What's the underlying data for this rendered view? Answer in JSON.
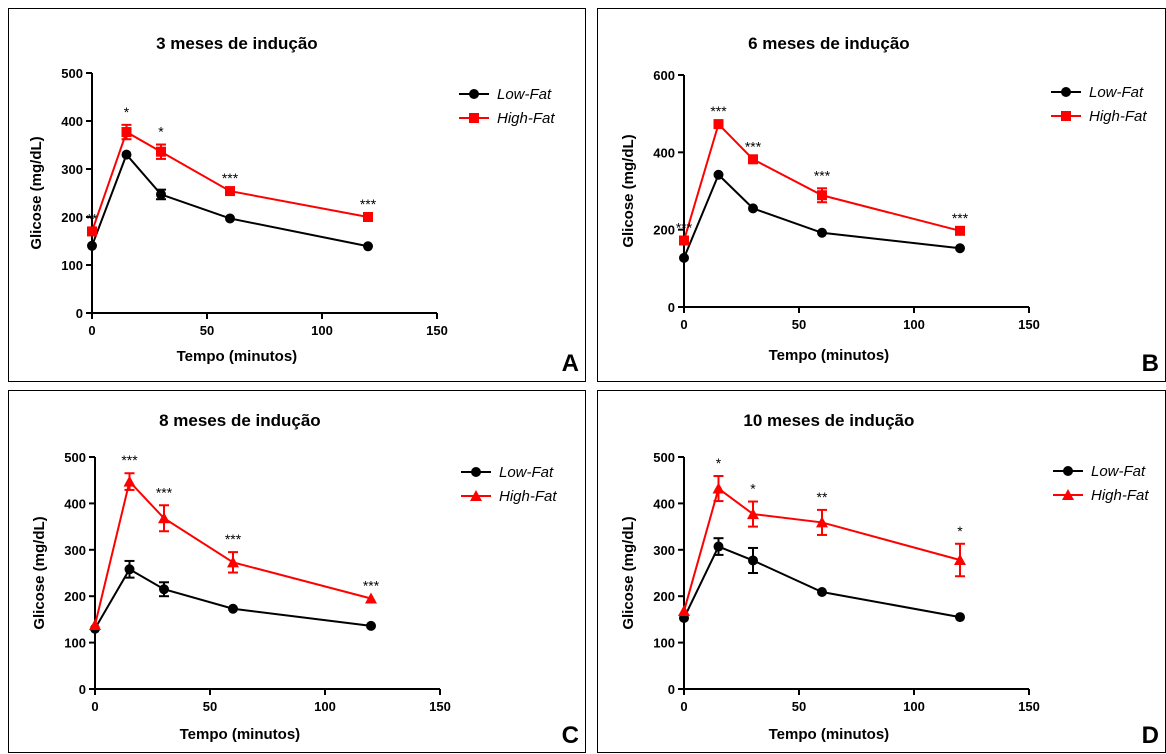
{
  "chart_data": [
    {
      "type": "line",
      "title": "3 meses de indução",
      "xlabel": "Tempo (minutos)",
      "ylabel": "Glicose (mg/dL)",
      "panel_label": "A",
      "xlim": [
        0,
        150
      ],
      "ylim": [
        0,
        500
      ],
      "xticks": [
        "0",
        "50",
        "100",
        "150"
      ],
      "yticks": [
        "0",
        "100",
        "200",
        "300",
        "400",
        "500"
      ],
      "legend_position": "right",
      "x": [
        0,
        15,
        30,
        60,
        120
      ],
      "series": [
        {
          "name": "Low-Fat",
          "color": "#000000",
          "marker": "circle",
          "values": [
            140,
            330,
            247,
            197,
            139
          ],
          "errors": [
            0,
            0,
            10,
            0,
            0
          ]
        },
        {
          "name": "High-Fat",
          "color": "#ff0000",
          "marker": "square",
          "values": [
            170,
            377,
            336,
            254,
            200
          ],
          "errors": [
            0,
            15,
            15,
            0,
            0
          ]
        }
      ],
      "annotations": [
        {
          "x": 0,
          "y": 170,
          "text": "**"
        },
        {
          "x": 15,
          "y": 392,
          "text": "*"
        },
        {
          "x": 30,
          "y": 351,
          "text": "*"
        },
        {
          "x": 60,
          "y": 254,
          "text": "***"
        },
        {
          "x": 120,
          "y": 200,
          "text": "***"
        }
      ]
    },
    {
      "type": "line",
      "title": "6 meses de indução",
      "xlabel": "Tempo (minutos)",
      "ylabel": "Glicose (mg/dL)",
      "panel_label": "B",
      "xlim": [
        0,
        150
      ],
      "ylim": [
        0,
        600
      ],
      "xticks": [
        "0",
        "50",
        "100",
        "150"
      ],
      "yticks": [
        "0",
        "200",
        "400",
        "600"
      ],
      "legend_position": "right",
      "x": [
        0,
        15,
        30,
        60,
        120
      ],
      "series": [
        {
          "name": "Low-Fat",
          "color": "#000000",
          "marker": "circle",
          "values": [
            127,
            342,
            255,
            192,
            152
          ],
          "errors": [
            0,
            0,
            0,
            0,
            0
          ]
        },
        {
          "name": "High-Fat",
          "color": "#ff0000",
          "marker": "square",
          "values": [
            172,
            473,
            382,
            289,
            197
          ],
          "errors": [
            0,
            0,
            0,
            18,
            0
          ]
        }
      ],
      "annotations": [
        {
          "x": 0,
          "y": 172,
          "text": "***"
        },
        {
          "x": 15,
          "y": 473,
          "text": "***"
        },
        {
          "x": 30,
          "y": 382,
          "text": "***"
        },
        {
          "x": 60,
          "y": 307,
          "text": "***"
        },
        {
          "x": 120,
          "y": 197,
          "text": "***"
        }
      ]
    },
    {
      "type": "line",
      "title": "8 meses de indução",
      "xlabel": "Tempo  (minutos)",
      "ylabel": "Glicose (mg/dL)",
      "panel_label": "C",
      "xlim": [
        0,
        150
      ],
      "ylim": [
        0,
        500
      ],
      "xticks": [
        "0",
        "50",
        "100",
        "150"
      ],
      "yticks": [
        "0",
        "100",
        "200",
        "300",
        "400",
        "500"
      ],
      "legend_position": "right",
      "x": [
        0,
        15,
        30,
        60,
        120
      ],
      "series": [
        {
          "name": "Low-Fat",
          "color": "#000000",
          "marker": "circle",
          "values": [
            130,
            258,
            215,
            173,
            136
          ],
          "errors": [
            0,
            18,
            15,
            0,
            0
          ]
        },
        {
          "name": "High-Fat",
          "color": "#ff0000",
          "marker": "triangle",
          "values": [
            138,
            447,
            368,
            273,
            195
          ],
          "errors": [
            0,
            18,
            28,
            22,
            0
          ]
        }
      ],
      "annotations": [
        {
          "x": 15,
          "y": 465,
          "text": "***"
        },
        {
          "x": 30,
          "y": 396,
          "text": "***"
        },
        {
          "x": 60,
          "y": 295,
          "text": "***"
        },
        {
          "x": 120,
          "y": 195,
          "text": "***"
        }
      ]
    },
    {
      "type": "line",
      "title": "10 meses de indução",
      "xlabel": "Tempo (minutos)",
      "ylabel": "Glicose (mg/dL)",
      "panel_label": "D",
      "xlim": [
        0,
        150
      ],
      "ylim": [
        0,
        500
      ],
      "xticks": [
        "0",
        "50",
        "100",
        "150"
      ],
      "yticks": [
        "0",
        "100",
        "200",
        "300",
        "400",
        "500"
      ],
      "legend_position": "right",
      "x": [
        0,
        15,
        30,
        60,
        120
      ],
      "series": [
        {
          "name": "Low-Fat",
          "color": "#000000",
          "marker": "circle",
          "values": [
            153,
            307,
            277,
            209,
            155
          ],
          "errors": [
            0,
            18,
            27,
            0,
            0
          ]
        },
        {
          "name": "High-Fat",
          "color": "#ff0000",
          "marker": "triangle",
          "values": [
            168,
            432,
            377,
            359,
            278
          ],
          "errors": [
            0,
            27,
            27,
            27,
            35
          ]
        }
      ],
      "annotations": [
        {
          "x": 15,
          "y": 459,
          "text": "*"
        },
        {
          "x": 30,
          "y": 404,
          "text": "*"
        },
        {
          "x": 60,
          "y": 386,
          "text": "**"
        },
        {
          "x": 120,
          "y": 313,
          "text": "*"
        }
      ]
    }
  ]
}
